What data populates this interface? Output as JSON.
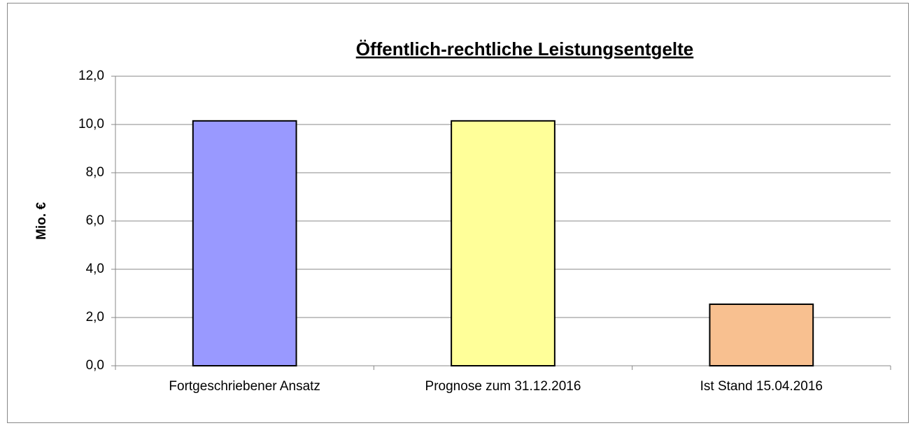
{
  "chart_data": {
    "type": "bar",
    "title": "Öffentlich-rechtliche Leistungsentgelte",
    "y_label": "Mio. €",
    "categories": [
      "Fortgeschriebener Ansatz",
      "Prognose zum 31.12.2016",
      "Ist Stand 15.04.2016"
    ],
    "values": [
      10.15,
      10.15,
      2.55
    ],
    "colors": [
      "#9999ff",
      "#ffff99",
      "#f8c090"
    ],
    "ylim": [
      0,
      12
    ],
    "yticks": [
      {
        "value": 0,
        "label": "0,0"
      },
      {
        "value": 2,
        "label": "2,0"
      },
      {
        "value": 4,
        "label": "4,0"
      },
      {
        "value": 6,
        "label": "6,0"
      },
      {
        "value": 8,
        "label": "8,0"
      },
      {
        "value": 10,
        "label": "10,0"
      },
      {
        "value": 12,
        "label": "12,0"
      }
    ],
    "grid": true
  }
}
